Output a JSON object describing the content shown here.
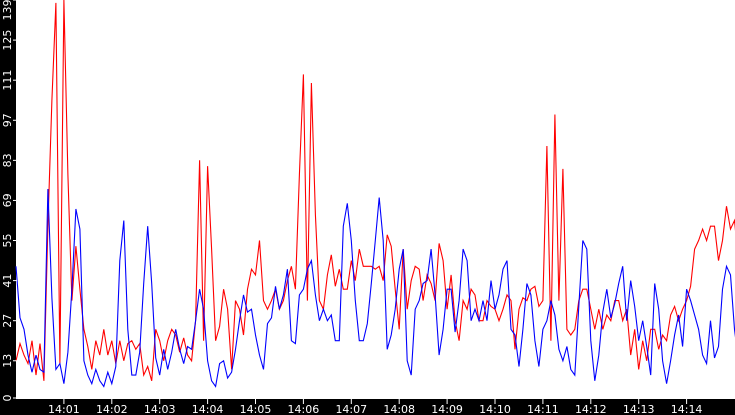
{
  "chart_data": {
    "type": "line",
    "title": "",
    "xlabel": "",
    "ylabel": "",
    "ylim": [
      0,
      139
    ],
    "xlim": [
      "14:00:00",
      "14:15:15"
    ],
    "grid": false,
    "legend": "none",
    "background": "#ffffff",
    "axis_background": "#000000",
    "axis_text_color": "#ffffff",
    "y_ticks": [
      "0",
      "13",
      "27",
      "41",
      "55",
      "69",
      "83",
      "97",
      "111",
      "125",
      "139"
    ],
    "x_ticks": [
      "14:01",
      "14:02",
      "14:03",
      "14:04",
      "14:05",
      "14:06",
      "14:07",
      "14:08",
      "14:09",
      "14:10",
      "14:11",
      "14:12",
      "14:13",
      "14:14"
    ],
    "x": [
      "14:00:00",
      "14:00:05",
      "14:00:10",
      "14:00:15",
      "14:00:20",
      "14:00:25",
      "14:00:30",
      "14:00:35",
      "14:00:40",
      "14:00:45",
      "14:00:50",
      "14:00:55",
      "14:01:00",
      "14:01:05",
      "14:01:10",
      "14:01:15",
      "14:01:20",
      "14:01:25",
      "14:01:30",
      "14:01:35",
      "14:01:40",
      "14:01:45",
      "14:01:50",
      "14:01:55",
      "14:02:00",
      "14:02:05",
      "14:02:10",
      "14:02:15",
      "14:02:20",
      "14:02:25",
      "14:02:30",
      "14:02:35",
      "14:02:40",
      "14:02:45",
      "14:02:50",
      "14:02:55",
      "14:03:00",
      "14:03:05",
      "14:03:10",
      "14:03:15",
      "14:03:20",
      "14:03:25",
      "14:03:30",
      "14:03:35",
      "14:03:40",
      "14:03:45",
      "14:03:50",
      "14:03:55",
      "14:04:00",
      "14:04:05",
      "14:04:10",
      "14:04:15",
      "14:04:20",
      "14:04:25",
      "14:04:30",
      "14:04:35",
      "14:04:40",
      "14:04:45",
      "14:04:50",
      "14:04:55",
      "14:05:00",
      "14:05:05",
      "14:05:10",
      "14:05:15",
      "14:05:20",
      "14:05:25",
      "14:05:30",
      "14:05:35",
      "14:05:40",
      "14:05:45",
      "14:05:50",
      "14:05:55",
      "14:06:00",
      "14:06:05",
      "14:06:10",
      "14:06:15",
      "14:06:20",
      "14:06:25",
      "14:06:30",
      "14:06:35",
      "14:06:40",
      "14:06:45",
      "14:06:50",
      "14:06:55",
      "14:07:00",
      "14:07:05",
      "14:07:10",
      "14:07:15",
      "14:07:20",
      "14:07:25",
      "14:07:30",
      "14:07:35",
      "14:07:40",
      "14:07:45",
      "14:07:50",
      "14:07:55",
      "14:08:00",
      "14:08:05",
      "14:08:10",
      "14:08:15",
      "14:08:20",
      "14:08:25",
      "14:08:30",
      "14:08:35",
      "14:08:40",
      "14:08:45",
      "14:08:50",
      "14:08:55",
      "14:09:00",
      "14:09:05",
      "14:09:10",
      "14:09:15",
      "14:09:20",
      "14:09:25",
      "14:09:30",
      "14:09:35",
      "14:09:40",
      "14:09:45",
      "14:09:50",
      "14:09:55",
      "14:10:00",
      "14:10:05",
      "14:10:10",
      "14:10:15",
      "14:10:20",
      "14:10:25",
      "14:10:30",
      "14:10:35",
      "14:10:40",
      "14:10:45",
      "14:10:50",
      "14:10:55",
      "14:11:00",
      "14:11:05",
      "14:11:10",
      "14:11:15",
      "14:11:20",
      "14:11:25",
      "14:11:30",
      "14:11:35",
      "14:11:40",
      "14:11:45",
      "14:11:50",
      "14:11:55",
      "14:12:00",
      "14:12:05",
      "14:12:10",
      "14:12:15",
      "14:12:20",
      "14:12:25",
      "14:12:30",
      "14:12:35",
      "14:12:40",
      "14:12:45",
      "14:12:50",
      "14:12:55",
      "14:13:00",
      "14:13:05",
      "14:13:10",
      "14:13:15",
      "14:13:20",
      "14:13:25",
      "14:13:30",
      "14:13:35",
      "14:13:40",
      "14:13:45",
      "14:13:50",
      "14:13:55",
      "14:14:00",
      "14:14:05",
      "14:14:10",
      "14:14:15",
      "14:14:20",
      "14:14:25",
      "14:14:30",
      "14:14:35",
      "14:14:40",
      "14:14:45",
      "14:14:50",
      "14:14:55",
      "14:15:00",
      "14:15:05",
      "14:15:10",
      "14:15:15"
    ],
    "series": [
      {
        "color": "#ff0000",
        "values": [
          13,
          19,
          15,
          12,
          20,
          8,
          19,
          6,
          60,
          104,
          138,
          12,
          139,
          78,
          34,
          53,
          38,
          24,
          18,
          10,
          20,
          15,
          24,
          15,
          20,
          12,
          20,
          13,
          19,
          20,
          17,
          19,
          8,
          11,
          6,
          24,
          20,
          13,
          20,
          24,
          22,
          16,
          21,
          15,
          13,
          27,
          83,
          20,
          81,
          52,
          20,
          25,
          38,
          31,
          10,
          34,
          31,
          22,
          38,
          45,
          43,
          55,
          34,
          31,
          34,
          38,
          31,
          34,
          41,
          46,
          38,
          78,
          113,
          34,
          110,
          64,
          34,
          31,
          43,
          50,
          39,
          45,
          38,
          38,
          48,
          41,
          52,
          46,
          46,
          46,
          45,
          46,
          41,
          57,
          53,
          38,
          24,
          52,
          31,
          41,
          46,
          45,
          34,
          43,
          40,
          34,
          54,
          48,
          31,
          43,
          27,
          20,
          34,
          31,
          38,
          36,
          27,
          27,
          34,
          32,
          31,
          27,
          31,
          36,
          34,
          17,
          31,
          35,
          34,
          38,
          39,
          32,
          34,
          88,
          20,
          99,
          34,
          80,
          24,
          22,
          24,
          34,
          38,
          38,
          31,
          24,
          31,
          24,
          29,
          27,
          34,
          34,
          27,
          31,
          15,
          24,
          10,
          20,
          13,
          24,
          24,
          17,
          22,
          20,
          29,
          32,
          27,
          31,
          34,
          39,
          52,
          55,
          59,
          55,
          60,
          60,
          48,
          55,
          67,
          59,
          62,
          48,
          55,
          60
        ]
      },
      {
        "color": "#0000ff",
        "values": [
          46,
          28,
          24,
          15,
          9,
          15,
          10,
          9,
          73,
          35,
          10,
          12,
          5,
          16,
          38,
          66,
          59,
          13,
          8,
          5,
          10,
          6,
          4,
          9,
          5,
          11,
          48,
          62,
          24,
          8,
          8,
          16,
          40,
          60,
          40,
          14,
          8,
          17,
          10,
          16,
          24,
          17,
          12,
          18,
          17,
          27,
          38,
          31,
          13,
          6,
          4,
          12,
          13,
          7,
          9,
          17,
          27,
          36,
          30,
          31,
          22,
          15,
          10,
          26,
          28,
          39,
          31,
          36,
          45,
          20,
          19,
          36,
          38,
          45,
          48,
          36,
          27,
          31,
          27,
          29,
          20,
          20,
          60,
          68,
          55,
          34,
          20,
          20,
          26,
          40,
          55,
          70,
          55,
          17,
          22,
          31,
          45,
          52,
          13,
          8,
          31,
          34,
          40,
          41,
          52,
          36,
          15,
          24,
          38,
          38,
          23,
          34,
          52,
          48,
          27,
          31,
          27,
          34,
          27,
          41,
          31,
          36,
          45,
          48,
          24,
          22,
          11,
          24,
          40,
          36,
          20,
          11,
          24,
          27,
          34,
          29,
          17,
          13,
          18,
          10,
          8,
          32,
          55,
          52,
          20,
          6,
          15,
          30,
          38,
          28,
          33,
          40,
          46,
          27,
          41,
          32,
          20,
          27,
          18,
          8,
          40,
          31,
          13,
          5,
          13,
          22,
          29,
          18,
          38,
          34,
          29,
          24,
          15,
          12,
          27,
          14,
          18,
          38,
          46,
          43,
          24,
          13,
          8,
          10
        ]
      }
    ]
  }
}
